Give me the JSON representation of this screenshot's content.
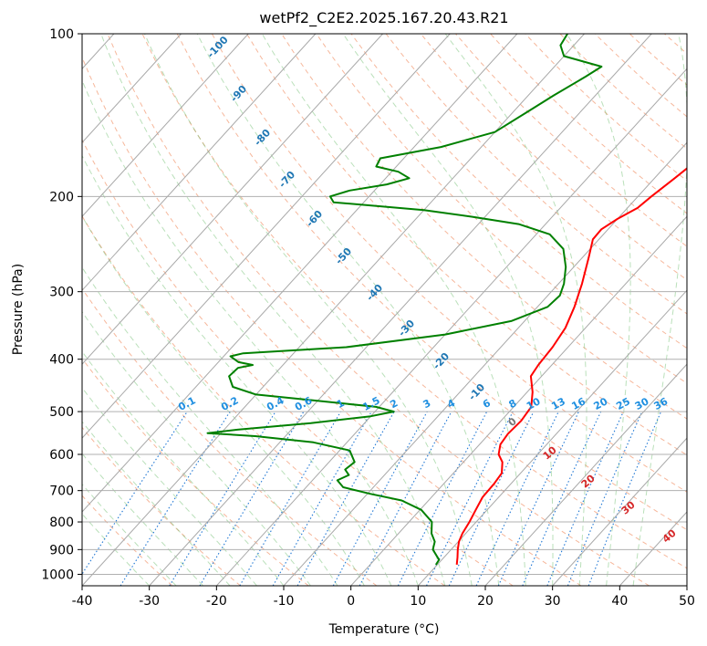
{
  "chart_data": {
    "type": "line",
    "subtype": "skew-T log-P diagram",
    "title": "wetPf2_C2E2.2025.167.20.43.R21",
    "xlabel": "Temperature (°C)",
    "ylabel": "Pressure (hPa)",
    "xlim": [
      -40,
      50
    ],
    "ylim": [
      1050,
      100
    ],
    "y_scale": "log",
    "grid": true,
    "x_ticks": [
      -40,
      -30,
      -20,
      -10,
      0,
      10,
      20,
      30,
      40,
      50
    ],
    "y_ticks": [
      100,
      200,
      300,
      400,
      500,
      600,
      700,
      800,
      900,
      1000
    ],
    "series": [
      {
        "name": "",
        "color": "#ff0000",
        "points": [
          {
            "p": 960,
            "t": 12.9
          },
          {
            "p": 930,
            "t": 12.0
          },
          {
            "p": 900,
            "t": 11.0
          },
          {
            "p": 870,
            "t": 10.1
          },
          {
            "p": 840,
            "t": 9.5
          },
          {
            "p": 800,
            "t": 9.0
          },
          {
            "p": 760,
            "t": 8.3
          },
          {
            "p": 720,
            "t": 7.6
          },
          {
            "p": 680,
            "t": 7.5
          },
          {
            "p": 650,
            "t": 7.2
          },
          {
            "p": 620,
            "t": 5.8
          },
          {
            "p": 600,
            "t": 4.2
          },
          {
            "p": 575,
            "t": 3.1
          },
          {
            "p": 550,
            "t": 2.8
          },
          {
            "p": 520,
            "t": 3.0
          },
          {
            "p": 490,
            "t": 2.6
          },
          {
            "p": 460,
            "t": 0.8
          },
          {
            "p": 430,
            "t": -1.6
          },
          {
            "p": 410,
            "t": -2.0
          },
          {
            "p": 380,
            "t": -2.3
          },
          {
            "p": 350,
            "t": -3.0
          },
          {
            "p": 320,
            "t": -4.5
          },
          {
            "p": 290,
            "t": -6.5
          },
          {
            "p": 260,
            "t": -9.0
          },
          {
            "p": 240,
            "t": -10.9
          },
          {
            "p": 230,
            "t": -11.0
          },
          {
            "p": 220,
            "t": -10.0
          },
          {
            "p": 210,
            "t": -8.5
          },
          {
            "p": 200,
            "t": -8.0
          },
          {
            "p": 185,
            "t": -7.0
          },
          {
            "p": 170,
            "t": -6.0
          },
          {
            "p": 150,
            "t": -6.0
          },
          {
            "p": 130,
            "t": -6.5
          },
          {
            "p": 115,
            "t": -7.0
          },
          {
            "p": 100,
            "t": -8.5
          }
        ]
      },
      {
        "name": "",
        "color": "#008000",
        "points": [
          {
            "p": 960,
            "t": 9.8
          },
          {
            "p": 940,
            "t": 9.6
          },
          {
            "p": 900,
            "t": 7.3
          },
          {
            "p": 870,
            "t": 6.5
          },
          {
            "p": 840,
            "t": 4.9
          },
          {
            "p": 800,
            "t": 3.4
          },
          {
            "p": 760,
            "t": 0.2
          },
          {
            "p": 730,
            "t": -4.0
          },
          {
            "p": 710,
            "t": -9.5
          },
          {
            "p": 690,
            "t": -14.5
          },
          {
            "p": 670,
            "t": -16.3
          },
          {
            "p": 655,
            "t": -15.3
          },
          {
            "p": 640,
            "t": -16.6
          },
          {
            "p": 620,
            "t": -16.2
          },
          {
            "p": 590,
            "t": -18.5
          },
          {
            "p": 570,
            "t": -25.0
          },
          {
            "p": 555,
            "t": -34.5
          },
          {
            "p": 548,
            "t": -42.0
          },
          {
            "p": 540,
            "t": -38.0
          },
          {
            "p": 525,
            "t": -28.0
          },
          {
            "p": 510,
            "t": -20.0
          },
          {
            "p": 500,
            "t": -17.2
          },
          {
            "p": 490,
            "t": -20.5
          },
          {
            "p": 475,
            "t": -32.0
          },
          {
            "p": 465,
            "t": -40.0
          },
          {
            "p": 450,
            "t": -44.5
          },
          {
            "p": 430,
            "t": -46.5
          },
          {
            "p": 415,
            "t": -46.3
          },
          {
            "p": 410,
            "t": -44.5
          },
          {
            "p": 405,
            "t": -47.0
          },
          {
            "p": 395,
            "t": -49.0
          },
          {
            "p": 390,
            "t": -47.5
          },
          {
            "p": 380,
            "t": -33.0
          },
          {
            "p": 360,
            "t": -20.0
          },
          {
            "p": 340,
            "t": -12.0
          },
          {
            "p": 320,
            "t": -8.5
          },
          {
            "p": 305,
            "t": -8.2
          },
          {
            "p": 290,
            "t": -9.2
          },
          {
            "p": 270,
            "t": -11.2
          },
          {
            "p": 250,
            "t": -14.0
          },
          {
            "p": 235,
            "t": -18.0
          },
          {
            "p": 225,
            "t": -24.0
          },
          {
            "p": 218,
            "t": -32.0
          },
          {
            "p": 212,
            "t": -40.0
          },
          {
            "p": 205,
            "t": -54.5
          },
          {
            "p": 200,
            "t": -55.8
          },
          {
            "p": 195,
            "t": -53.7
          },
          {
            "p": 190,
            "t": -49.0
          },
          {
            "p": 185,
            "t": -46.5
          },
          {
            "p": 180,
            "t": -49.0
          },
          {
            "p": 176,
            "t": -53.0
          },
          {
            "p": 170,
            "t": -53.5
          },
          {
            "p": 162,
            "t": -46.0
          },
          {
            "p": 152,
            "t": -40.0
          },
          {
            "p": 140,
            "t": -38.0
          },
          {
            "p": 130,
            "t": -36.2
          },
          {
            "p": 120,
            "t": -34.0
          },
          {
            "p": 115,
            "t": -33.0
          },
          {
            "p": 110,
            "t": -40.0
          },
          {
            "p": 105,
            "t": -42.0
          },
          {
            "p": 100,
            "t": -42.5
          }
        ]
      }
    ],
    "dry_adiabat_labels": [
      "-100",
      "-90",
      "-80",
      "-70",
      "-60",
      "-50",
      "-40",
      "-30",
      "-20",
      "-10"
    ],
    "moist_adiabat_labels": [
      "0",
      "10",
      "20",
      "30",
      "40"
    ],
    "mixing_ratio_labels": [
      "0.1",
      "0.2",
      "0.4",
      "0.6",
      "1",
      "1.5",
      "2",
      "3",
      "4",
      "6",
      "8",
      "10",
      "13",
      "16",
      "20",
      "25",
      "30",
      "36"
    ]
  }
}
